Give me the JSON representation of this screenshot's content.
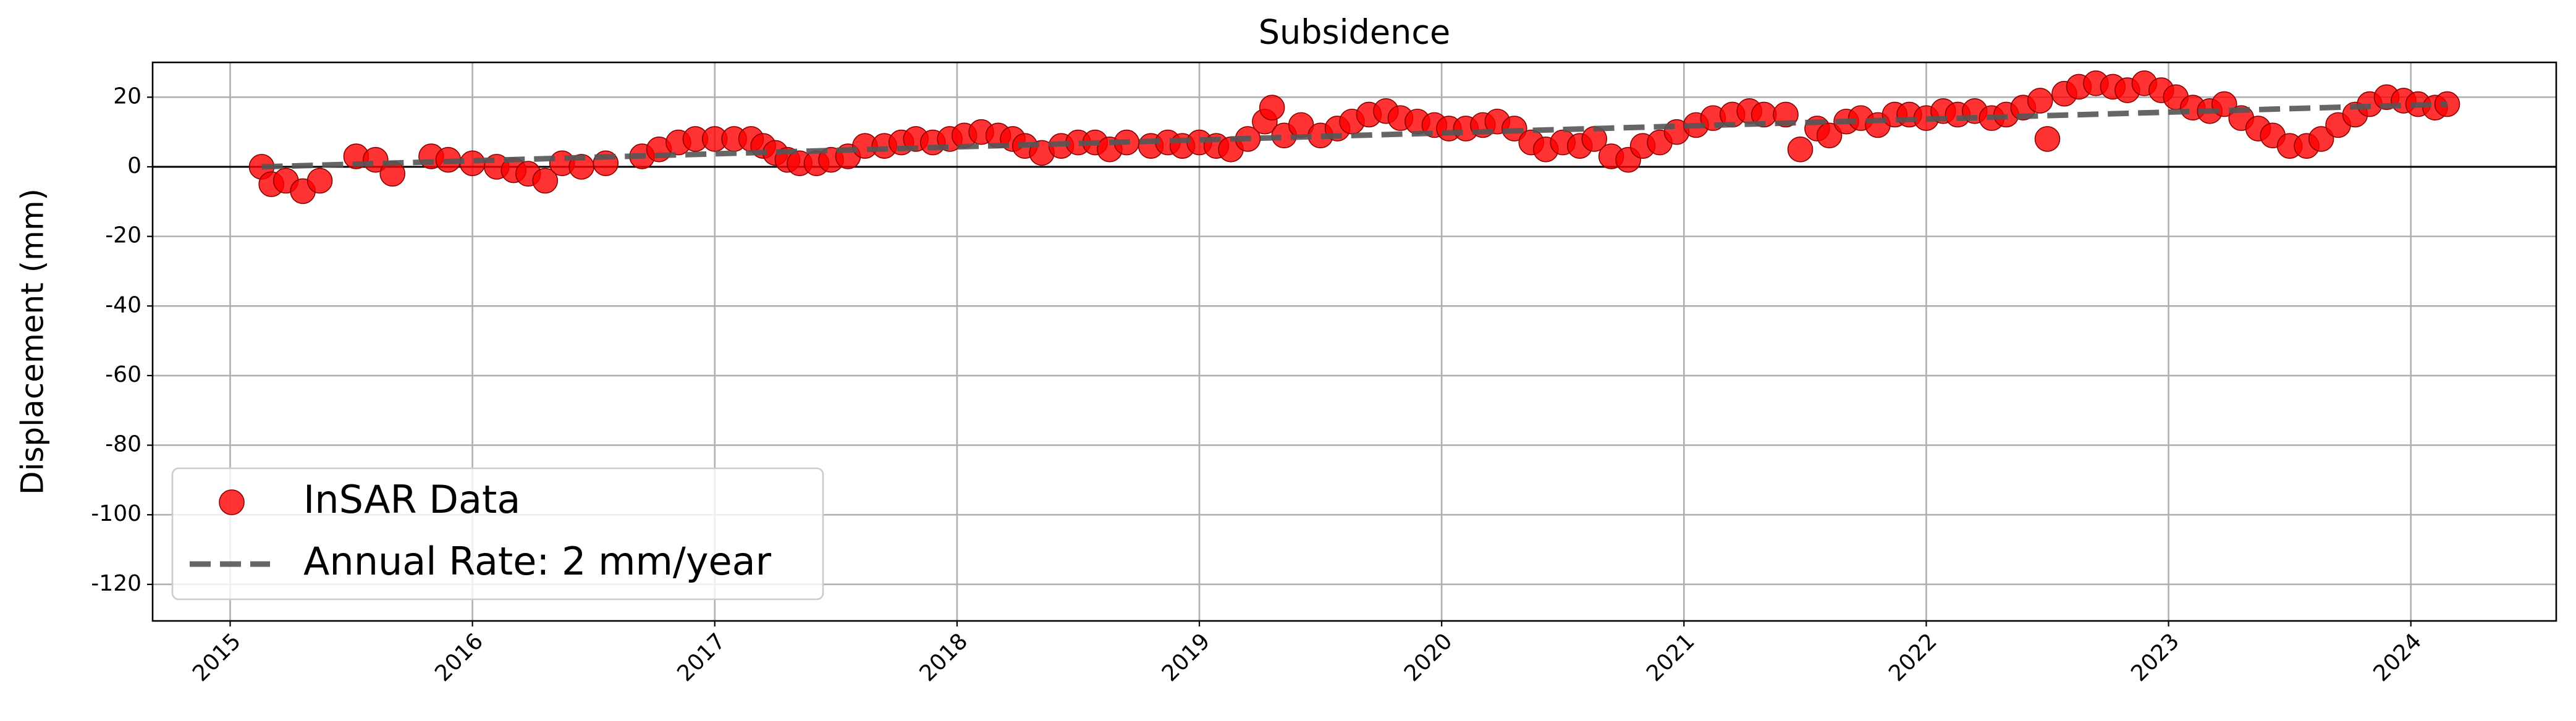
{
  "chart_data": {
    "type": "scatter",
    "title": "Subsidence",
    "ylabel": "Displacement (mm)",
    "xlim": [
      2014.68,
      2024.6
    ],
    "xticks": [
      2015,
      2016,
      2017,
      2018,
      2019,
      2020,
      2021,
      2022,
      2023,
      2024
    ],
    "ylim": [
      -130.5,
      30
    ],
    "yticks": [
      -120,
      -100,
      -80,
      -60,
      -40,
      -20,
      0,
      20
    ],
    "grid": true,
    "hlines": [
      0
    ],
    "legend": "lower left",
    "series": [
      {
        "name": "InSAR Data",
        "kind": "scatter",
        "color": "#ff0000",
        "x": [
          2015.13,
          2015.17,
          2015.23,
          2015.3,
          2015.37,
          2015.52,
          2015.6,
          2015.67,
          2015.83,
          2015.9,
          2016.0,
          2016.1,
          2016.17,
          2016.23,
          2016.3,
          2016.37,
          2016.45,
          2016.55,
          2016.7,
          2016.77,
          2016.85,
          2016.92,
          2017.0,
          2017.08,
          2017.15,
          2017.2,
          2017.25,
          2017.3,
          2017.35,
          2017.42,
          2017.48,
          2017.55,
          2017.62,
          2017.7,
          2017.77,
          2017.83,
          2017.9,
          2017.97,
          2018.03,
          2018.1,
          2018.17,
          2018.23,
          2018.28,
          2018.35,
          2018.43,
          2018.5,
          2018.57,
          2018.63,
          2018.7,
          2018.8,
          2018.87,
          2018.93,
          2019.0,
          2019.07,
          2019.13,
          2019.2,
          2019.27,
          2019.3,
          2019.35,
          2019.42,
          2019.5,
          2019.57,
          2019.63,
          2019.7,
          2019.77,
          2019.83,
          2019.9,
          2019.97,
          2020.03,
          2020.1,
          2020.17,
          2020.23,
          2020.3,
          2020.37,
          2020.43,
          2020.5,
          2020.57,
          2020.63,
          2020.7,
          2020.77,
          2020.83,
          2020.9,
          2020.97,
          2021.05,
          2021.12,
          2021.2,
          2021.27,
          2021.33,
          2021.42,
          2021.48,
          2021.55,
          2021.6,
          2021.67,
          2021.73,
          2021.8,
          2021.87,
          2021.93,
          2022.0,
          2022.07,
          2022.13,
          2022.2,
          2022.27,
          2022.33,
          2022.4,
          2022.47,
          2022.5,
          2022.57,
          2022.63,
          2022.7,
          2022.77,
          2022.83,
          2022.9,
          2022.97,
          2023.03,
          2023.1,
          2023.17,
          2023.23,
          2023.3,
          2023.37,
          2023.43,
          2023.5,
          2023.57,
          2023.63,
          2023.7,
          2023.77,
          2023.83,
          2023.9,
          2023.97,
          2024.03,
          2024.1,
          2024.15
        ],
        "values": [
          0,
          -5,
          -4,
          -7,
          -4,
          3,
          2,
          -2,
          3,
          2,
          1,
          0,
          -1,
          -2,
          -4,
          1,
          0,
          1,
          3,
          5,
          7,
          8,
          8,
          8,
          8,
          6,
          4,
          2,
          1,
          1,
          2,
          3,
          6,
          6,
          7,
          8,
          7,
          8,
          9,
          10,
          9,
          8,
          6,
          4,
          6,
          7,
          7,
          5,
          7,
          6,
          7,
          6,
          7,
          6,
          5,
          8,
          13,
          17,
          9,
          12,
          9,
          11,
          13,
          15,
          16,
          14,
          13,
          12,
          11,
          11,
          12,
          13,
          11,
          7,
          5,
          7,
          6,
          8,
          3,
          2,
          6,
          7,
          10,
          12,
          14,
          15,
          16,
          15,
          15,
          5,
          11,
          9,
          13,
          14,
          12,
          15,
          15,
          14,
          16,
          15,
          16,
          14,
          15,
          17,
          19,
          8,
          21,
          23,
          24,
          23,
          22,
          24,
          22,
          20,
          17,
          16,
          18,
          14,
          11,
          9,
          6,
          6,
          8,
          12,
          15,
          18,
          20,
          19,
          18,
          17,
          18
        ]
      },
      {
        "name": "Annual Rate: 2 mm/year",
        "kind": "line",
        "color": "#555555",
        "x": [
          2015.13,
          2024.15
        ],
        "values": [
          0,
          18
        ]
      }
    ]
  }
}
